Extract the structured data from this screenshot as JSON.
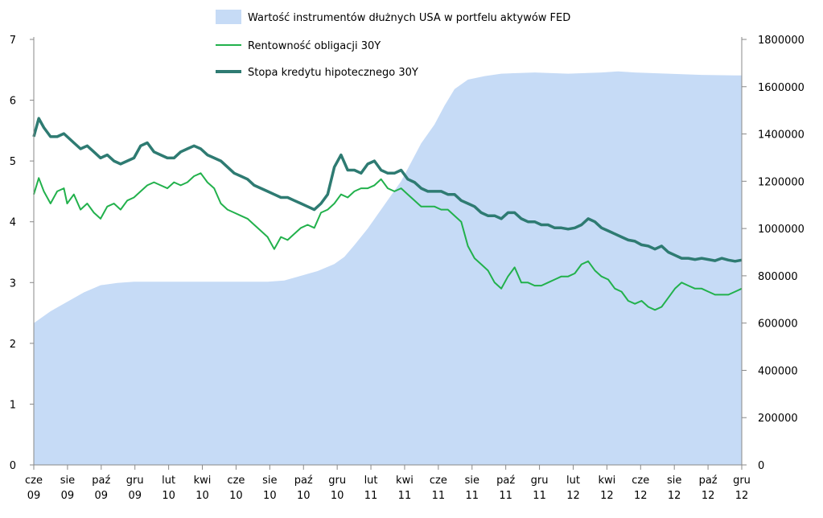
{
  "chart_data": {
    "type": "area+line",
    "title": "",
    "legend": {
      "placement": "top-center",
      "entries": [
        {
          "label": "Wartość instrumentów dłużnych USA w portfelu aktywów FED",
          "color": "#c6dbf6",
          "kind": "area"
        },
        {
          "label": "Rentowność obligacji 30Y",
          "color": "#22b14c",
          "kind": "line"
        },
        {
          "label": "Stopa kredytu hipotecznego 30Y",
          "color": "#2e7b72",
          "kind": "line"
        }
      ]
    },
    "x_ticks": [
      [
        "cze",
        "09"
      ],
      [
        "sie",
        "09"
      ],
      [
        "paź",
        "09"
      ],
      [
        "gru",
        "09"
      ],
      [
        "lut",
        "10"
      ],
      [
        "kwi",
        "10"
      ],
      [
        "cze",
        "10"
      ],
      [
        "sie",
        "10"
      ],
      [
        "paź",
        "10"
      ],
      [
        "gru",
        "10"
      ],
      [
        "lut",
        "11"
      ],
      [
        "kwi",
        "11"
      ],
      [
        "cze",
        "11"
      ],
      [
        "sie",
        "11"
      ],
      [
        "paź",
        "11"
      ],
      [
        "gru",
        "11"
      ],
      [
        "lut",
        "12"
      ],
      [
        "kwi",
        "12"
      ],
      [
        "cze",
        "12"
      ],
      [
        "sie",
        "12"
      ],
      [
        "paź",
        "12"
      ],
      [
        "gru",
        "12"
      ]
    ],
    "x_range_months": [
      0,
      21.2
    ],
    "y_left": {
      "min": 0,
      "max": 7,
      "ticks": [
        "0",
        "1",
        "2",
        "3",
        "4",
        "5",
        "6",
        "7"
      ]
    },
    "y_right": {
      "min": 0,
      "max": 1800000,
      "ticks": [
        "0",
        "200000",
        "400000",
        "600000",
        "800000",
        "1000000",
        "1200000",
        "1400000",
        "1600000",
        "1800000"
      ]
    },
    "grid": false,
    "series": [
      {
        "name": "Wartość instrumentów dłużnych USA w portfelu aktywów FED",
        "axis": "right",
        "style": "area",
        "color": "#c6dbf6",
        "points": [
          [
            0,
            600000
          ],
          [
            0.5,
            650000
          ],
          [
            1,
            690000
          ],
          [
            1.5,
            730000
          ],
          [
            2,
            760000
          ],
          [
            2.5,
            770000
          ],
          [
            3,
            775000
          ],
          [
            3.5,
            775000
          ],
          [
            4,
            775000
          ],
          [
            5,
            775000
          ],
          [
            6,
            775000
          ],
          [
            7,
            775000
          ],
          [
            7.5,
            780000
          ],
          [
            8,
            800000
          ],
          [
            8.5,
            820000
          ],
          [
            9,
            850000
          ],
          [
            9.3,
            880000
          ],
          [
            9.6,
            930000
          ],
          [
            10,
            1000000
          ],
          [
            10.3,
            1060000
          ],
          [
            10.6,
            1120000
          ],
          [
            11,
            1200000
          ],
          [
            11.3,
            1280000
          ],
          [
            11.6,
            1360000
          ],
          [
            12,
            1440000
          ],
          [
            12.3,
            1520000
          ],
          [
            12.6,
            1590000
          ],
          [
            13,
            1630000
          ],
          [
            13.5,
            1645000
          ],
          [
            14,
            1655000
          ],
          [
            15,
            1660000
          ],
          [
            16,
            1655000
          ],
          [
            17,
            1660000
          ],
          [
            17.5,
            1665000
          ],
          [
            18,
            1660000
          ],
          [
            19,
            1655000
          ],
          [
            20,
            1650000
          ],
          [
            21,
            1648000
          ],
          [
            21.2,
            1648000
          ]
        ]
      },
      {
        "name": "Rentowność obligacji 30Y",
        "axis": "left",
        "style": "line",
        "color": "#22b14c",
        "points": [
          [
            0,
            4.45
          ],
          [
            0.15,
            4.72
          ],
          [
            0.3,
            4.5
          ],
          [
            0.5,
            4.3
          ],
          [
            0.7,
            4.5
          ],
          [
            0.9,
            4.55
          ],
          [
            1.0,
            4.3
          ],
          [
            1.2,
            4.45
          ],
          [
            1.4,
            4.2
          ],
          [
            1.6,
            4.3
          ],
          [
            1.8,
            4.15
          ],
          [
            2.0,
            4.05
          ],
          [
            2.2,
            4.25
          ],
          [
            2.4,
            4.3
          ],
          [
            2.6,
            4.2
          ],
          [
            2.8,
            4.35
          ],
          [
            3.0,
            4.4
          ],
          [
            3.2,
            4.5
          ],
          [
            3.4,
            4.6
          ],
          [
            3.6,
            4.65
          ],
          [
            3.8,
            4.6
          ],
          [
            4.0,
            4.55
          ],
          [
            4.2,
            4.65
          ],
          [
            4.4,
            4.6
          ],
          [
            4.6,
            4.65
          ],
          [
            4.8,
            4.75
          ],
          [
            5.0,
            4.8
          ],
          [
            5.2,
            4.65
          ],
          [
            5.4,
            4.55
          ],
          [
            5.6,
            4.3
          ],
          [
            5.8,
            4.2
          ],
          [
            6.0,
            4.15
          ],
          [
            6.2,
            4.1
          ],
          [
            6.4,
            4.05
          ],
          [
            6.6,
            3.95
          ],
          [
            6.8,
            3.85
          ],
          [
            7.0,
            3.75
          ],
          [
            7.2,
            3.55
          ],
          [
            7.4,
            3.75
          ],
          [
            7.6,
            3.7
          ],
          [
            7.8,
            3.8
          ],
          [
            8.0,
            3.9
          ],
          [
            8.2,
            3.95
          ],
          [
            8.4,
            3.9
          ],
          [
            8.6,
            4.15
          ],
          [
            8.8,
            4.2
          ],
          [
            9.0,
            4.3
          ],
          [
            9.2,
            4.45
          ],
          [
            9.4,
            4.4
          ],
          [
            9.6,
            4.5
          ],
          [
            9.8,
            4.55
          ],
          [
            10.0,
            4.55
          ],
          [
            10.2,
            4.6
          ],
          [
            10.4,
            4.7
          ],
          [
            10.6,
            4.55
          ],
          [
            10.8,
            4.5
          ],
          [
            11.0,
            4.55
          ],
          [
            11.2,
            4.45
          ],
          [
            11.4,
            4.35
          ],
          [
            11.6,
            4.25
          ],
          [
            11.8,
            4.25
          ],
          [
            12.0,
            4.25
          ],
          [
            12.2,
            4.2
          ],
          [
            12.4,
            4.2
          ],
          [
            12.6,
            4.1
          ],
          [
            12.8,
            4.0
          ],
          [
            13.0,
            3.6
          ],
          [
            13.2,
            3.4
          ],
          [
            13.4,
            3.3
          ],
          [
            13.6,
            3.2
          ],
          [
            13.8,
            3.0
          ],
          [
            14.0,
            2.9
          ],
          [
            14.2,
            3.1
          ],
          [
            14.4,
            3.25
          ],
          [
            14.6,
            3.0
          ],
          [
            14.8,
            3.0
          ],
          [
            15.0,
            2.95
          ],
          [
            15.2,
            2.95
          ],
          [
            15.4,
            3.0
          ],
          [
            15.6,
            3.05
          ],
          [
            15.8,
            3.1
          ],
          [
            16.0,
            3.1
          ],
          [
            16.2,
            3.15
          ],
          [
            16.4,
            3.3
          ],
          [
            16.6,
            3.35
          ],
          [
            16.8,
            3.2
          ],
          [
            17.0,
            3.1
          ],
          [
            17.2,
            3.05
          ],
          [
            17.4,
            2.9
          ],
          [
            17.6,
            2.85
          ],
          [
            17.8,
            2.7
          ],
          [
            18.0,
            2.65
          ],
          [
            18.2,
            2.7
          ],
          [
            18.4,
            2.6
          ],
          [
            18.6,
            2.55
          ],
          [
            18.8,
            2.6
          ],
          [
            19.0,
            2.75
          ],
          [
            19.2,
            2.9
          ],
          [
            19.4,
            3.0
          ],
          [
            19.6,
            2.95
          ],
          [
            19.8,
            2.9
          ],
          [
            20.0,
            2.9
          ],
          [
            20.2,
            2.85
          ],
          [
            20.4,
            2.8
          ],
          [
            20.6,
            2.8
          ],
          [
            20.8,
            2.8
          ],
          [
            21.0,
            2.85
          ],
          [
            21.2,
            2.9
          ]
        ]
      },
      {
        "name": "Stopa kredytu hipotecznego 30Y",
        "axis": "left",
        "style": "line",
        "color": "#2e7b72",
        "points": [
          [
            0,
            5.4
          ],
          [
            0.15,
            5.7
          ],
          [
            0.3,
            5.55
          ],
          [
            0.5,
            5.4
          ],
          [
            0.7,
            5.4
          ],
          [
            0.9,
            5.45
          ],
          [
            1.0,
            5.4
          ],
          [
            1.2,
            5.3
          ],
          [
            1.4,
            5.2
          ],
          [
            1.6,
            5.25
          ],
          [
            1.8,
            5.15
          ],
          [
            2.0,
            5.05
          ],
          [
            2.2,
            5.1
          ],
          [
            2.4,
            5.0
          ],
          [
            2.6,
            4.95
          ],
          [
            2.8,
            5.0
          ],
          [
            3.0,
            5.05
          ],
          [
            3.2,
            5.25
          ],
          [
            3.4,
            5.3
          ],
          [
            3.6,
            5.15
          ],
          [
            3.8,
            5.1
          ],
          [
            4.0,
            5.05
          ],
          [
            4.2,
            5.05
          ],
          [
            4.4,
            5.15
          ],
          [
            4.6,
            5.2
          ],
          [
            4.8,
            5.25
          ],
          [
            5.0,
            5.2
          ],
          [
            5.2,
            5.1
          ],
          [
            5.4,
            5.05
          ],
          [
            5.6,
            5.0
          ],
          [
            5.8,
            4.9
          ],
          [
            6.0,
            4.8
          ],
          [
            6.2,
            4.75
          ],
          [
            6.4,
            4.7
          ],
          [
            6.6,
            4.6
          ],
          [
            6.8,
            4.55
          ],
          [
            7.0,
            4.5
          ],
          [
            7.2,
            4.45
          ],
          [
            7.4,
            4.4
          ],
          [
            7.6,
            4.4
          ],
          [
            7.8,
            4.35
          ],
          [
            8.0,
            4.3
          ],
          [
            8.2,
            4.25
          ],
          [
            8.4,
            4.2
          ],
          [
            8.6,
            4.3
          ],
          [
            8.8,
            4.45
          ],
          [
            9.0,
            4.9
          ],
          [
            9.2,
            5.1
          ],
          [
            9.4,
            4.85
          ],
          [
            9.6,
            4.85
          ],
          [
            9.8,
            4.8
          ],
          [
            10.0,
            4.95
          ],
          [
            10.2,
            5.0
          ],
          [
            10.4,
            4.85
          ],
          [
            10.6,
            4.8
          ],
          [
            10.8,
            4.8
          ],
          [
            11.0,
            4.85
          ],
          [
            11.2,
            4.7
          ],
          [
            11.4,
            4.65
          ],
          [
            11.6,
            4.55
          ],
          [
            11.8,
            4.5
          ],
          [
            12.0,
            4.5
          ],
          [
            12.2,
            4.5
          ],
          [
            12.4,
            4.45
          ],
          [
            12.6,
            4.45
          ],
          [
            12.8,
            4.35
          ],
          [
            13.0,
            4.3
          ],
          [
            13.2,
            4.25
          ],
          [
            13.4,
            4.15
          ],
          [
            13.6,
            4.1
          ],
          [
            13.8,
            4.1
          ],
          [
            14.0,
            4.05
          ],
          [
            14.2,
            4.15
          ],
          [
            14.4,
            4.15
          ],
          [
            14.6,
            4.05
          ],
          [
            14.8,
            4.0
          ],
          [
            15.0,
            4.0
          ],
          [
            15.2,
            3.95
          ],
          [
            15.4,
            3.95
          ],
          [
            15.6,
            3.9
          ],
          [
            15.8,
            3.9
          ],
          [
            16.0,
            3.88
          ],
          [
            16.2,
            3.9
          ],
          [
            16.4,
            3.95
          ],
          [
            16.6,
            4.05
          ],
          [
            16.8,
            4.0
          ],
          [
            17.0,
            3.9
          ],
          [
            17.2,
            3.85
          ],
          [
            17.4,
            3.8
          ],
          [
            17.6,
            3.75
          ],
          [
            17.8,
            3.7
          ],
          [
            18.0,
            3.68
          ],
          [
            18.2,
            3.62
          ],
          [
            18.4,
            3.6
          ],
          [
            18.6,
            3.55
          ],
          [
            18.8,
            3.6
          ],
          [
            19.0,
            3.5
          ],
          [
            19.2,
            3.45
          ],
          [
            19.4,
            3.4
          ],
          [
            19.6,
            3.4
          ],
          [
            19.8,
            3.38
          ],
          [
            20.0,
            3.4
          ],
          [
            20.2,
            3.38
          ],
          [
            20.4,
            3.36
          ],
          [
            20.6,
            3.4
          ],
          [
            20.8,
            3.37
          ],
          [
            21.0,
            3.35
          ],
          [
            21.2,
            3.37
          ]
        ]
      }
    ]
  }
}
